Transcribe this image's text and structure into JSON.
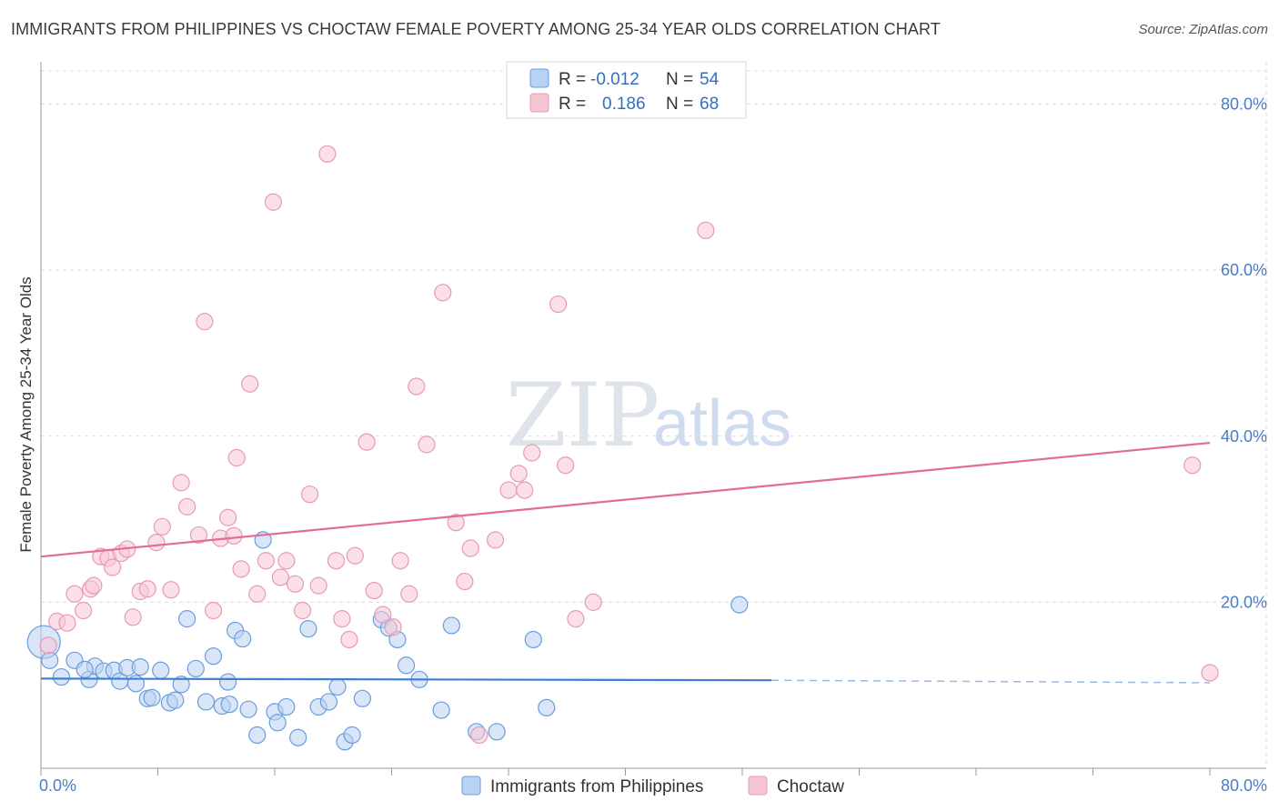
{
  "title": "IMMIGRANTS FROM PHILIPPINES VS CHOCTAW FEMALE POVERTY AMONG 25-34 YEAR OLDS CORRELATION CHART",
  "source": "Source: ZipAtlas.com",
  "watermark": {
    "zip": "ZIP",
    "atlas": "atlas"
  },
  "chart_data": {
    "type": "scatter",
    "xlabel": "",
    "ylabel": "Female Poverty Among 25-34 Year Olds",
    "xlim": [
      0,
      80
    ],
    "ylim": [
      0,
      84
    ],
    "x_tick_labels": [
      {
        "value": 0,
        "label": "0.0%"
      },
      {
        "value": 80,
        "label": "80.0%"
      }
    ],
    "y_tick_labels": [
      {
        "value": 20,
        "label": "20.0%"
      },
      {
        "value": 40,
        "label": "40.0%"
      },
      {
        "value": 60,
        "label": "60.0%"
      },
      {
        "value": 80,
        "label": "80.0%"
      }
    ],
    "grid": true,
    "legend_placement": "top-center",
    "legend": [
      {
        "r_label": "R =",
        "r_value": "-0.012",
        "n_label": "N =",
        "n_value": "54"
      },
      {
        "r_label": "R =",
        "r_value": "0.186",
        "n_label": "N =",
        "n_value": "68"
      }
    ],
    "series": [
      {
        "name": "Immigrants from Philippines",
        "color": "#6a9de0",
        "fill": "#b9d1f2",
        "trend": {
          "x": [
            0,
            50
          ],
          "y": [
            10.8,
            10.6
          ],
          "dashed_to": 80,
          "dashed_y": 10.3
        },
        "points": [
          [
            0.2,
            15.2
          ],
          [
            0.6,
            13.0
          ],
          [
            1.4,
            11.0
          ],
          [
            2.3,
            13.0
          ],
          [
            3.3,
            10.7
          ],
          [
            3.7,
            12.3
          ],
          [
            4.3,
            11.7
          ],
          [
            5.0,
            11.8
          ],
          [
            5.4,
            10.5
          ],
          [
            5.9,
            12.1
          ],
          [
            6.5,
            10.2
          ],
          [
            6.8,
            12.2
          ],
          [
            7.3,
            8.4
          ],
          [
            7.6,
            8.5
          ],
          [
            8.2,
            11.8
          ],
          [
            8.8,
            7.9
          ],
          [
            9.2,
            8.2
          ],
          [
            9.6,
            10.1
          ],
          [
            10.0,
            18.0
          ],
          [
            10.6,
            12.0
          ],
          [
            11.3,
            8.0
          ],
          [
            11.8,
            13.5
          ],
          [
            12.4,
            7.5
          ],
          [
            12.9,
            7.7
          ],
          [
            13.3,
            16.6
          ],
          [
            13.8,
            15.6
          ],
          [
            14.2,
            7.1
          ],
          [
            14.8,
            4.0
          ],
          [
            15.2,
            27.5
          ],
          [
            16.0,
            6.8
          ],
          [
            16.8,
            7.4
          ],
          [
            17.6,
            3.7
          ],
          [
            18.3,
            16.8
          ],
          [
            19.0,
            7.4
          ],
          [
            19.7,
            8.0
          ],
          [
            20.3,
            9.8
          ],
          [
            20.8,
            3.2
          ],
          [
            21.3,
            4.0
          ],
          [
            22.0,
            8.4
          ],
          [
            23.3,
            17.9
          ],
          [
            23.8,
            16.9
          ],
          [
            24.4,
            15.5
          ],
          [
            25.0,
            12.4
          ],
          [
            25.9,
            10.7
          ],
          [
            27.4,
            7.0
          ],
          [
            28.1,
            17.2
          ],
          [
            29.8,
            4.4
          ],
          [
            31.2,
            4.4
          ],
          [
            33.7,
            15.5
          ],
          [
            34.6,
            7.3
          ],
          [
            47.8,
            19.7
          ],
          [
            12.8,
            10.4
          ],
          [
            16.2,
            5.5
          ],
          [
            3.0,
            11.9
          ]
        ]
      },
      {
        "name": "Choctaw",
        "color": "#e79ab4",
        "fill": "#f7c6d5",
        "trend": {
          "x": [
            0,
            80
          ],
          "y": [
            25.5,
            39.2
          ]
        },
        "points": [
          [
            0.5,
            14.8
          ],
          [
            1.1,
            17.7
          ],
          [
            1.8,
            17.5
          ],
          [
            2.3,
            21.0
          ],
          [
            2.9,
            19.0
          ],
          [
            3.4,
            21.6
          ],
          [
            3.6,
            22.0
          ],
          [
            4.1,
            25.5
          ],
          [
            4.6,
            25.3
          ],
          [
            4.9,
            24.2
          ],
          [
            5.5,
            25.9
          ],
          [
            5.9,
            26.4
          ],
          [
            6.3,
            18.2
          ],
          [
            6.8,
            21.3
          ],
          [
            7.3,
            21.6
          ],
          [
            7.9,
            27.2
          ],
          [
            8.3,
            29.1
          ],
          [
            8.9,
            21.5
          ],
          [
            9.6,
            34.4
          ],
          [
            10.0,
            31.5
          ],
          [
            10.8,
            28.1
          ],
          [
            11.2,
            53.8
          ],
          [
            11.8,
            19.0
          ],
          [
            12.3,
            27.7
          ],
          [
            12.8,
            30.2
          ],
          [
            13.2,
            28.0
          ],
          [
            13.7,
            24.0
          ],
          [
            14.3,
            46.3
          ],
          [
            14.8,
            21.0
          ],
          [
            15.4,
            25.0
          ],
          [
            15.9,
            68.2
          ],
          [
            16.4,
            23.0
          ],
          [
            16.8,
            25.0
          ],
          [
            17.4,
            22.2
          ],
          [
            17.9,
            19.0
          ],
          [
            18.4,
            33.0
          ],
          [
            19.0,
            22.0
          ],
          [
            19.6,
            74.0
          ],
          [
            20.2,
            25.0
          ],
          [
            20.6,
            18.0
          ],
          [
            21.1,
            15.5
          ],
          [
            21.5,
            25.6
          ],
          [
            22.3,
            39.3
          ],
          [
            22.8,
            21.4
          ],
          [
            23.4,
            18.5
          ],
          [
            24.1,
            17.0
          ],
          [
            24.6,
            25.0
          ],
          [
            25.2,
            21.0
          ],
          [
            25.7,
            46.0
          ],
          [
            26.4,
            39.0
          ],
          [
            27.5,
            57.3
          ],
          [
            28.4,
            29.6
          ],
          [
            29.0,
            22.5
          ],
          [
            29.4,
            26.5
          ],
          [
            30.0,
            4.0
          ],
          [
            31.1,
            27.5
          ],
          [
            32.0,
            33.5
          ],
          [
            32.7,
            35.5
          ],
          [
            33.1,
            33.5
          ],
          [
            33.6,
            38.0
          ],
          [
            35.4,
            55.9
          ],
          [
            35.9,
            36.5
          ],
          [
            36.6,
            18.0
          ],
          [
            37.8,
            20.0
          ],
          [
            45.5,
            64.8
          ],
          [
            78.8,
            36.5
          ],
          [
            80.0,
            11.5
          ],
          [
            13.4,
            37.4
          ]
        ]
      }
    ]
  }
}
